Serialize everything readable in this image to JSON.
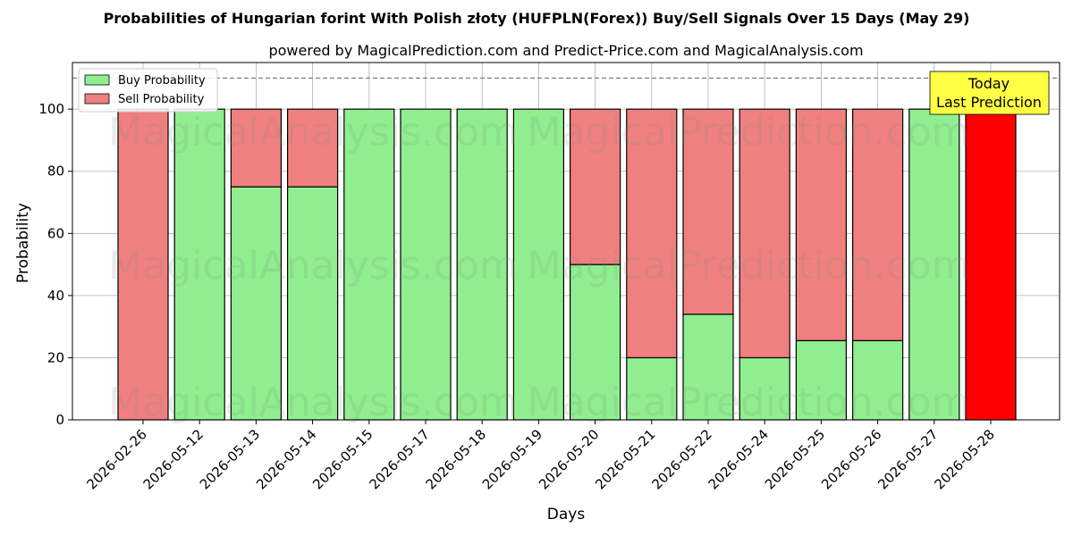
{
  "chart_data": {
    "type": "bar",
    "stacked": true,
    "title": "Probabilities of Hungarian forint With Polish złoty (HUFPLN(Forex)) Buy/Sell Signals Over 15 Days (May 29)",
    "subtitle": "powered by MagicalPrediction.com and Predict-Price.com and MagicalAnalysis.com",
    "xlabel": "Days",
    "ylabel": "Probability",
    "ylim": [
      0,
      115
    ],
    "yticks": [
      0,
      20,
      40,
      60,
      80,
      100
    ],
    "reference_line": 110,
    "grid": true,
    "legend_placement": "top-left",
    "categories": [
      "2026-02-26",
      "2026-05-12",
      "2026-05-13",
      "2026-05-14",
      "2026-05-15",
      "2026-05-17",
      "2026-05-18",
      "2026-05-19",
      "2026-05-20",
      "2026-05-21",
      "2026-05-22",
      "2026-05-24",
      "2026-05-25",
      "2026-05-26",
      "2026-05-27",
      "2026-05-28"
    ],
    "series": [
      {
        "name": "Buy Probability",
        "color": "#90ee90",
        "values": [
          0,
          100,
          75,
          75,
          100,
          100,
          100,
          100,
          50,
          20,
          34,
          20,
          25.5,
          25.5,
          100,
          0
        ]
      },
      {
        "name": "Sell Probability",
        "color": "#f08080",
        "values": [
          100,
          0,
          25,
          25,
          0,
          0,
          0,
          0,
          50,
          80,
          66,
          80,
          74.5,
          74.5,
          0,
          100
        ]
      }
    ],
    "highlight": {
      "index": 15,
      "color": "#ff0000"
    },
    "annotation": {
      "line1": "Today",
      "line2": "Last Prediction",
      "color": "#ffff44"
    },
    "watermarks": [
      "MagicalAnalysis.com",
      "MagicalPrediction.com"
    ]
  }
}
